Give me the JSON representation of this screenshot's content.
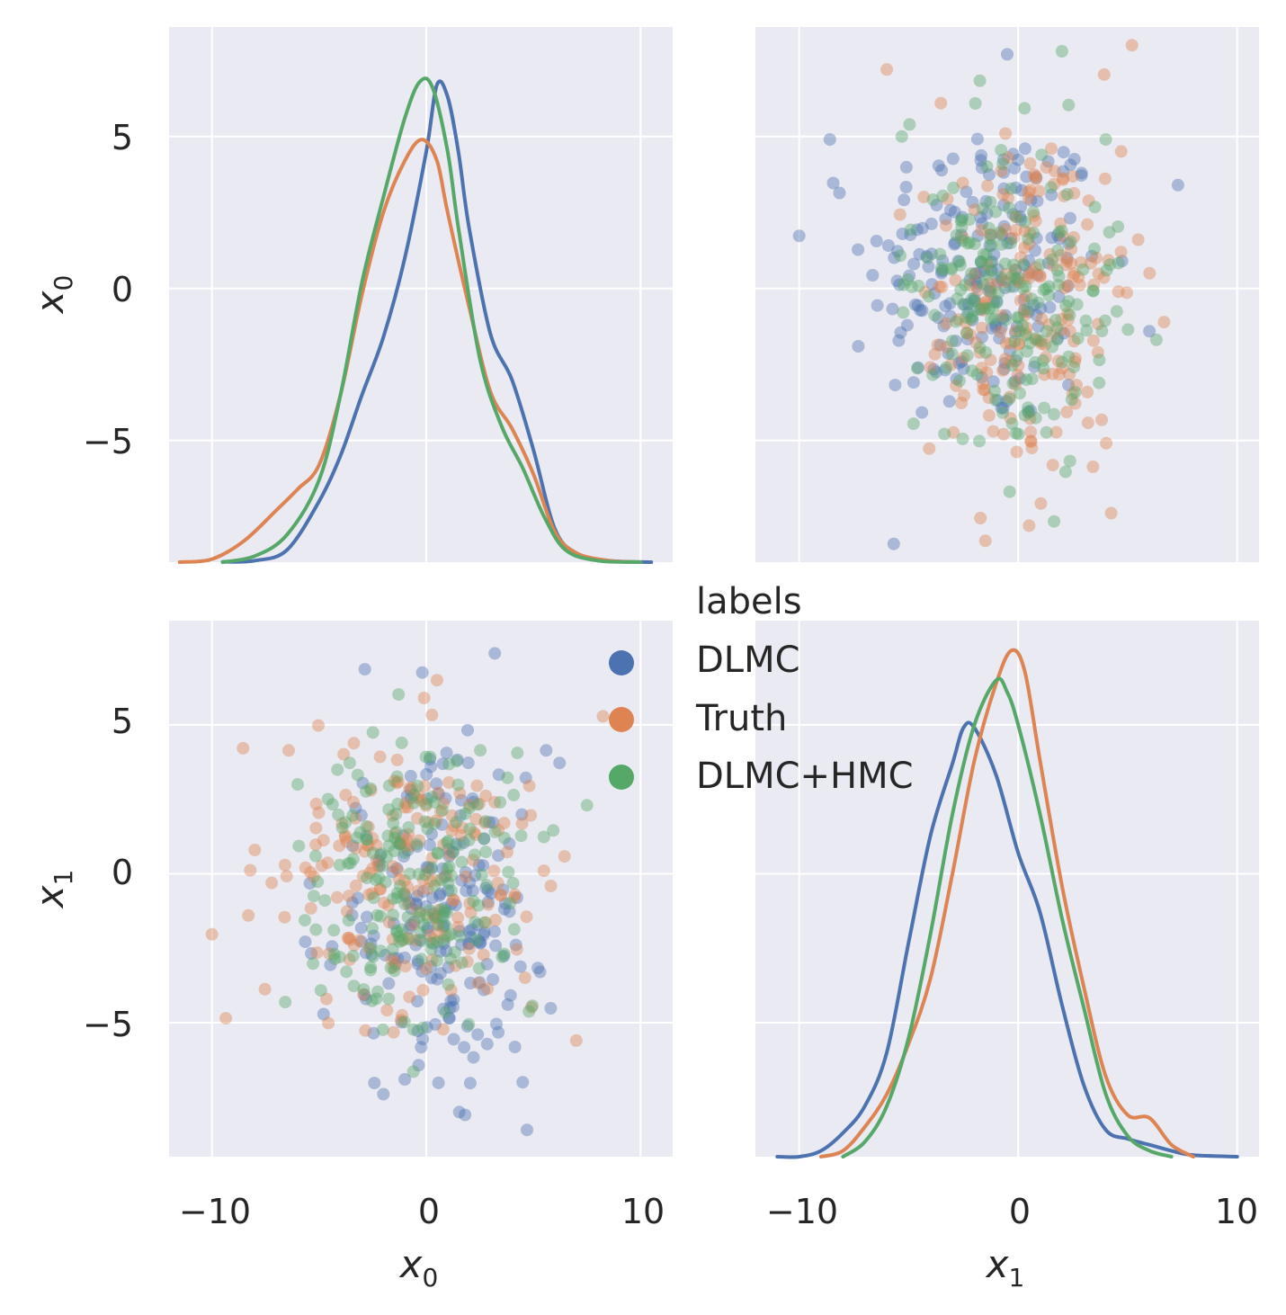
{
  "chart_data": {
    "type": "pairplot",
    "variables": [
      "x0",
      "x1"
    ],
    "axis_labels": {
      "x0": {
        "base": "x",
        "sub": "0"
      },
      "x1": {
        "base": "x",
        "sub": "1"
      }
    },
    "x_ticks": {
      "x0": {
        "values": [
          -10,
          0,
          10
        ],
        "labels": [
          "−10",
          "0",
          "10"
        ]
      },
      "x1": {
        "values": [
          -10,
          0,
          10
        ],
        "labels": [
          "−10",
          "0",
          "10"
        ]
      }
    },
    "y_ticks": {
      "x0": {
        "values": [
          -5,
          0,
          5
        ],
        "labels": [
          "−5",
          "0",
          "5"
        ]
      },
      "x1": {
        "values": [
          -5,
          0,
          5
        ],
        "labels": [
          "−5",
          "0",
          "5"
        ]
      }
    },
    "xlim": {
      "x0": [
        -12,
        11.5
      ],
      "x1": [
        -12,
        11
      ]
    },
    "ylim": {
      "x0": [
        -9,
        8.6
      ],
      "x1": [
        -9.5,
        8.5
      ]
    },
    "legend": {
      "title": "labels",
      "entries": [
        {
          "label": "DLMC",
          "color": "#4c72b0"
        },
        {
          "label": "Truth",
          "color": "#dd8452"
        },
        {
          "label": "DLMC+HMC",
          "color": "#55a868"
        }
      ]
    },
    "series_stats": [
      {
        "name": "DLMC",
        "color": "#4c72b0",
        "x0_mean": 0.5,
        "x0_sd": 2.9,
        "x1_mean": -1.5,
        "x1_sd": 3.0
      },
      {
        "name": "Truth",
        "color": "#dd8452",
        "x0_mean": -0.6,
        "x0_sd": 3.3,
        "x1_mean": 0.2,
        "x1_sd": 2.7
      },
      {
        "name": "DLMC+HMC",
        "color": "#55a868",
        "x0_mean": -0.4,
        "x0_sd": 2.8,
        "x1_mean": -0.4,
        "x1_sd": 2.6
      }
    ],
    "kde": {
      "x0": [
        {
          "name": "DLMC",
          "color": "#4c72b0",
          "points": [
            [
              -9.5,
              -8.99
            ],
            [
              -8,
              -8.95
            ],
            [
              -6.5,
              -8.6
            ],
            [
              -5,
              -7.0
            ],
            [
              -4,
              -5.5
            ],
            [
              -3,
              -3.5
            ],
            [
              -2,
              -1.6
            ],
            [
              -1,
              1.0
            ],
            [
              0,
              4.5
            ],
            [
              0.5,
              6.7
            ],
            [
              1,
              6.3
            ],
            [
              1.5,
              4.5
            ],
            [
              2,
              2.0
            ],
            [
              3,
              -1.5
            ],
            [
              4,
              -3.0
            ],
            [
              5,
              -5.3
            ],
            [
              6,
              -7.9
            ],
            [
              7,
              -8.7
            ],
            [
              8.5,
              -8.95
            ],
            [
              10.5,
              -9.0
            ]
          ]
        },
        {
          "name": "Truth",
          "color": "#dd8452",
          "points": [
            [
              -11.5,
              -9.0
            ],
            [
              -10,
              -8.9
            ],
            [
              -8.5,
              -8.3
            ],
            [
              -7,
              -7.3
            ],
            [
              -6,
              -6.6
            ],
            [
              -5,
              -5.8
            ],
            [
              -4,
              -3.5
            ],
            [
              -3,
              -0.2
            ],
            [
              -2,
              2.5
            ],
            [
              -1,
              4.2
            ],
            [
              -0.2,
              4.9
            ],
            [
              0.5,
              4.2
            ],
            [
              1,
              2.5
            ],
            [
              2,
              -0.6
            ],
            [
              3,
              -3.4
            ],
            [
              4,
              -4.6
            ],
            [
              5,
              -6.1
            ],
            [
              6,
              -8.0
            ],
            [
              7,
              -8.7
            ],
            [
              8.5,
              -8.95
            ],
            [
              10,
              -9.0
            ]
          ]
        },
        {
          "name": "DLMC+HMC",
          "color": "#55a868",
          "points": [
            [
              -9.5,
              -9.0
            ],
            [
              -8,
              -8.8
            ],
            [
              -6.5,
              -8.1
            ],
            [
              -5,
              -6.3
            ],
            [
              -4,
              -3.5
            ],
            [
              -3,
              0.2
            ],
            [
              -2,
              3.0
            ],
            [
              -1,
              5.6
            ],
            [
              -0.3,
              6.8
            ],
            [
              0.3,
              6.6
            ],
            [
              1,
              4.5
            ],
            [
              1.5,
              2.0
            ],
            [
              2.5,
              -2.3
            ],
            [
              3.5,
              -4.5
            ],
            [
              4.5,
              -5.9
            ],
            [
              5.5,
              -7.5
            ],
            [
              6.5,
              -8.6
            ],
            [
              8,
              -8.95
            ],
            [
              10,
              -9.0
            ]
          ]
        }
      ],
      "x1": [
        {
          "name": "DLMC",
          "color": "#4c72b0",
          "points": [
            [
              -11,
              -9.5
            ],
            [
              -10,
              -9.5
            ],
            [
              -9,
              -9.3
            ],
            [
              -8,
              -8.7
            ],
            [
              -7,
              -7.8
            ],
            [
              -6,
              -6.0
            ],
            [
              -5,
              -2.3
            ],
            [
              -4,
              1.3
            ],
            [
              -3,
              3.7
            ],
            [
              -2.5,
              4.9
            ],
            [
              -2,
              4.9
            ],
            [
              -1,
              3.3
            ],
            [
              0,
              0.7
            ],
            [
              1,
              -1.3
            ],
            [
              2,
              -4.4
            ],
            [
              3,
              -7.1
            ],
            [
              4,
              -8.6
            ],
            [
              5,
              -8.9
            ],
            [
              6,
              -9.1
            ],
            [
              7,
              -9.3
            ],
            [
              8,
              -9.45
            ],
            [
              10,
              -9.5
            ]
          ]
        },
        {
          "name": "Truth",
          "color": "#dd8452",
          "points": [
            [
              -9,
              -9.5
            ],
            [
              -8,
              -9.3
            ],
            [
              -7,
              -8.5
            ],
            [
              -6,
              -7.4
            ],
            [
              -5,
              -5.7
            ],
            [
              -4,
              -3.5
            ],
            [
              -3,
              0.0
            ],
            [
              -2,
              3.8
            ],
            [
              -1,
              6.4
            ],
            [
              -0.3,
              7.5
            ],
            [
              0.3,
              6.8
            ],
            [
              1,
              3.8
            ],
            [
              2,
              -0.4
            ],
            [
              3,
              -3.8
            ],
            [
              4,
              -6.8
            ],
            [
              5,
              -8.1
            ],
            [
              6,
              -8.2
            ],
            [
              7,
              -9.1
            ],
            [
              8,
              -9.5
            ]
          ]
        },
        {
          "name": "DLMC+HMC",
          "color": "#55a868",
          "points": [
            [
              -8,
              -9.5
            ],
            [
              -7,
              -9.0
            ],
            [
              -6,
              -7.8
            ],
            [
              -5,
              -5.5
            ],
            [
              -4,
              -2.0
            ],
            [
              -3,
              2.0
            ],
            [
              -2,
              5.0
            ],
            [
              -1,
              6.5
            ],
            [
              -0.5,
              6.1
            ],
            [
              0,
              5.0
            ],
            [
              1,
              2.0
            ],
            [
              2,
              -1.5
            ],
            [
              3,
              -4.5
            ],
            [
              4,
              -7.4
            ],
            [
              5,
              -8.8
            ],
            [
              6,
              -9.3
            ],
            [
              7,
              -9.5
            ]
          ]
        }
      ]
    },
    "points": {
      "x0_vs_x1": [
        {
          "name": "DLMC",
          "color": "#4c72b0",
          "outliers": [
            [
              3.2,
              7.4
            ],
            [
              4.7,
              -8.6
            ],
            [
              -2,
              -7.4
            ],
            [
              4.5,
              -7
            ]
          ]
        },
        {
          "name": "Truth",
          "color": "#dd8452",
          "outliers": [
            [
              -8,
              0.8
            ],
            [
              -8.3,
              -1.4
            ],
            [
              7,
              -5.6
            ],
            [
              0.5,
              6.5
            ]
          ]
        },
        {
          "name": "DLMC+HMC",
          "color": "#55a868",
          "outliers": [
            [
              7.5,
              2.3
            ],
            [
              -6,
              3
            ]
          ]
        }
      ],
      "x1_vs_x0": [
        {
          "name": "DLMC",
          "color": "#4c72b0",
          "outliers": [
            [
              -0.5,
              7.7
            ],
            [
              7.3,
              3.4
            ],
            [
              -8.6,
              4.9
            ],
            [
              -7.3,
              -1.9
            ]
          ]
        },
        {
          "name": "Truth",
          "color": "#dd8452",
          "outliers": [
            [
              -6,
              7.2
            ],
            [
              -1.5,
              -8.3
            ],
            [
              0.5,
              -7.8
            ],
            [
              6,
              0.5
            ]
          ]
        },
        {
          "name": "DLMC+HMC",
          "color": "#55a868",
          "outliers": [
            [
              2,
              7.8
            ],
            [
              4,
              4.9
            ]
          ]
        }
      ]
    }
  }
}
